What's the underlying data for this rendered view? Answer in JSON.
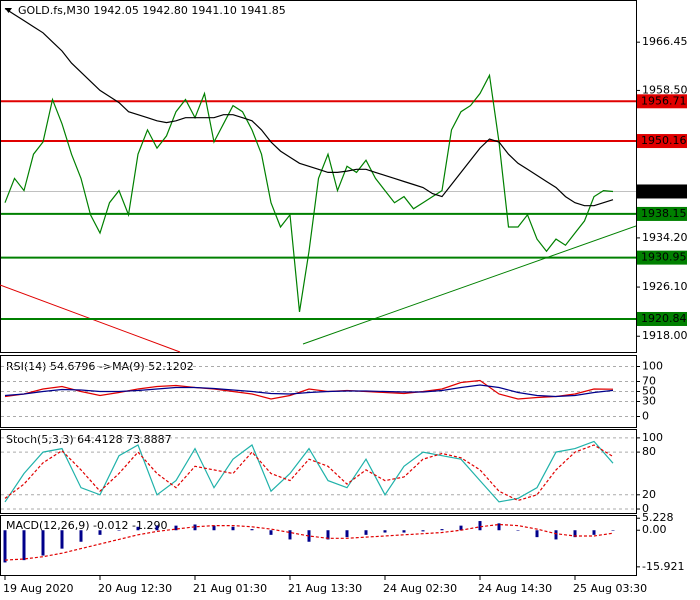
{
  "chart_data": [
    {
      "type": "line",
      "title": "GOLD.fs,M30  1942.05 1942.80 1941.10 1941.85",
      "categories": [
        "19 Aug 2020",
        null,
        null,
        null,
        null,
        null,
        null,
        null,
        null,
        null,
        "20 Aug 12:30",
        null,
        null,
        null,
        null,
        null,
        null,
        null,
        null,
        null,
        "21 Aug 01:30",
        null,
        null,
        null,
        null,
        null,
        null,
        null,
        null,
        null,
        "21 Aug 13:30",
        null,
        null,
        null,
        null,
        null,
        null,
        null,
        null,
        null,
        "24 Aug 02:30",
        null,
        null,
        null,
        null,
        null,
        null,
        null,
        null,
        null,
        "24 Aug 14:30",
        null,
        null,
        null,
        null,
        null,
        null,
        null,
        null,
        null,
        "25 Aug 03:30",
        null,
        null,
        null,
        null
      ],
      "series": [
        {
          "color": "#008000",
          "values": [
            1940,
            1944,
            1942,
            1948,
            1950,
            1957,
            1953,
            1948,
            1944,
            1938,
            1935,
            1940,
            1942,
            1938,
            1948,
            1952,
            1949,
            1951,
            1955,
            1957,
            1954,
            1958,
            1950,
            1953,
            1956,
            1955,
            1952,
            1948,
            1940,
            1936,
            1938,
            1922,
            1932,
            1944,
            1948,
            1942,
            1946,
            1945,
            1947,
            1944,
            1942,
            1940,
            1941,
            1939,
            1940,
            1941,
            1942,
            1952,
            1955,
            1956,
            1958,
            1961,
            1950,
            1936,
            1936,
            1938,
            1934,
            1932,
            1934,
            1933,
            1935,
            1937,
            1941,
            1942,
            1941.85
          ]
        },
        {
          "color": "#000000",
          "values": [
            1972,
            1971,
            1970,
            1969,
            1968,
            1966.5,
            1965,
            1963,
            1961.5,
            1960,
            1958.5,
            1957.5,
            1956.5,
            1955,
            1954.5,
            1954,
            1953.5,
            1953.2,
            1953.5,
            1954,
            1954,
            1954,
            1954,
            1954.5,
            1954.5,
            1954,
            1953.5,
            1952,
            1950,
            1948.5,
            1947.5,
            1946.5,
            1946,
            1945.5,
            1945,
            1945,
            1945.2,
            1945.5,
            1945.5,
            1945,
            1944.5,
            1944,
            1943.5,
            1943,
            1942.5,
            1941.5,
            1941,
            1943,
            1945,
            1947,
            1949,
            1950.5,
            1950,
            1948,
            1946.5,
            1945.5,
            1944.5,
            1943.5,
            1942.5,
            1941,
            1940,
            1939.5,
            1939.5,
            1940,
            1940.5
          ]
        }
      ],
      "levels": [
        {
          "value": 1956.71,
          "color": "#e00000"
        },
        {
          "value": 1950.16,
          "color": "#e00000"
        },
        {
          "value": 1941.85,
          "color": "#000000"
        },
        {
          "value": 1938.15,
          "color": "#008000"
        },
        {
          "value": 1930.95,
          "color": "#008000"
        },
        {
          "value": 1920.84,
          "color": "#008000"
        }
      ],
      "ylim": [
        1915.4,
        1973.4
      ],
      "yticks": [
        1966.45,
        {
          "value": 1958.5,
          "label": "1958.50"
        },
        {
          "value": 1934.2,
          "label": "1934.20"
        },
        {
          "value": 1926.1,
          "label": "1926.10"
        },
        {
          "value": 1918,
          "label": "1918.00"
        }
      ]
    },
    {
      "type": "line",
      "title": "RSI(14) 54.6796 ->MA(9) 52.1202",
      "series": [
        {
          "color": "#e00000",
          "values": [
            40,
            45,
            55,
            60,
            50,
            42,
            48,
            55,
            60,
            62,
            58,
            55,
            50,
            45,
            35,
            42,
            55,
            50,
            52,
            50,
            48,
            46,
            50,
            55,
            68,
            72,
            45,
            35,
            38,
            40,
            45,
            55,
            54.68
          ]
        },
        {
          "color": "#00008b",
          "values": [
            42,
            45,
            50,
            54,
            53,
            50,
            50,
            52,
            55,
            58,
            58,
            56,
            53,
            50,
            46,
            45,
            48,
            50,
            51,
            51,
            50,
            49,
            49,
            52,
            58,
            63,
            58,
            48,
            42,
            40,
            42,
            48,
            52.12
          ]
        }
      ],
      "ylim": [
        -23,
        123
      ],
      "yticks": [
        100,
        70,
        50,
        30,
        0
      ],
      "grid": true
    },
    {
      "type": "line",
      "title": "Stoch(5,3,3) 64.4128 73.8887",
      "series": [
        {
          "color": "#20b2aa",
          "values": [
            10,
            50,
            80,
            85,
            30,
            20,
            75,
            90,
            20,
            40,
            85,
            30,
            70,
            90,
            25,
            50,
            85,
            40,
            30,
            70,
            20,
            60,
            80,
            75,
            70,
            40,
            10,
            15,
            30,
            80,
            85,
            95,
            64.41
          ]
        },
        {
          "color": "#e00000",
          "dashed": true,
          "values": [
            15,
            35,
            65,
            82,
            55,
            25,
            50,
            80,
            50,
            30,
            60,
            55,
            50,
            80,
            50,
            40,
            70,
            60,
            35,
            55,
            40,
            45,
            70,
            78,
            72,
            55,
            25,
            12,
            20,
            55,
            80,
            90,
            73.89
          ]
        }
      ],
      "ylim": [
        -7,
        112.5
      ],
      "yticks": [
        100,
        80,
        20,
        0
      ],
      "grid": true
    },
    {
      "type": "bar",
      "title": "MACD(12,26,9) -0.012 -1.290",
      "series": [
        {
          "color": "#00008b",
          "values": [
            -14,
            -13,
            -11,
            -8,
            -5,
            -2,
            0,
            1.5,
            2,
            2,
            2.5,
            2,
            1.5,
            0.5,
            -2,
            -4,
            -5,
            -4,
            -3,
            -2,
            -1,
            -1,
            -0.5,
            0.5,
            2,
            4,
            3,
            0,
            -3,
            -4,
            -3,
            -2,
            -0.012
          ]
        },
        {
          "color": "#e00000",
          "dashed": true,
          "values": [
            -13,
            -12.5,
            -11.5,
            -10,
            -8,
            -6,
            -4,
            -2,
            -0.5,
            0.5,
            1.5,
            2,
            2,
            1.5,
            0.5,
            -1,
            -2.5,
            -3.5,
            -3.5,
            -3,
            -2.5,
            -2,
            -1.5,
            -1,
            0,
            1.5,
            2.5,
            2,
            0.5,
            -1.5,
            -2.5,
            -2.5,
            -1.29
          ]
        }
      ],
      "ylim": [
        -19.9,
        6.63
      ],
      "yticks": [
        5.228,
        {
          "value": 0,
          "label": "0.00"
        },
        -15.921
      ]
    }
  ]
}
